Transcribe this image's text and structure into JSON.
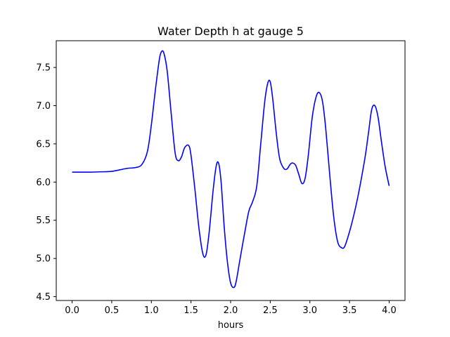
{
  "chart_data": {
    "type": "line",
    "title": "Water Depth h at gauge 5",
    "xlabel": "hours",
    "ylabel": "",
    "xlim": [
      -0.2,
      4.2
    ],
    "ylim": [
      4.45,
      7.85
    ],
    "xticks": [
      0.0,
      0.5,
      1.0,
      1.5,
      2.0,
      2.5,
      3.0,
      3.5,
      4.0
    ],
    "xtick_labels": [
      "0.0",
      "0.5",
      "1.0",
      "1.5",
      "2.0",
      "2.5",
      "3.0",
      "3.5",
      "4.0"
    ],
    "yticks": [
      4.5,
      5.0,
      5.5,
      6.0,
      6.5,
      7.0,
      7.5
    ],
    "ytick_labels": [
      "4.5",
      "5.0",
      "5.5",
      "6.0",
      "6.5",
      "7.0",
      "7.5"
    ],
    "grid": false,
    "series": [
      {
        "color": "#0000ff",
        "x": [
          0.0,
          0.2,
          0.4,
          0.5,
          0.6,
          0.7,
          0.8,
          0.88,
          0.95,
          1.0,
          1.05,
          1.1,
          1.13,
          1.16,
          1.2,
          1.25,
          1.3,
          1.34,
          1.38,
          1.42,
          1.47,
          1.5,
          1.55,
          1.6,
          1.65,
          1.69,
          1.73,
          1.78,
          1.82,
          1.85,
          1.88,
          1.92,
          1.96,
          2.0,
          2.04,
          2.07,
          2.12,
          2.18,
          2.23,
          2.28,
          2.33,
          2.38,
          2.43,
          2.47,
          2.5,
          2.53,
          2.58,
          2.62,
          2.67,
          2.71,
          2.75,
          2.78,
          2.82,
          2.86,
          2.9,
          2.94,
          2.98,
          3.03,
          3.08,
          3.12,
          3.16,
          3.2,
          3.25,
          3.3,
          3.35,
          3.4,
          3.44,
          3.5,
          3.55,
          3.6,
          3.65,
          3.7,
          3.74,
          3.78,
          3.82,
          3.86,
          3.9,
          3.95,
          4.0
        ],
        "y": [
          6.13,
          6.13,
          6.135,
          6.14,
          6.16,
          6.18,
          6.19,
          6.23,
          6.4,
          6.75,
          7.2,
          7.6,
          7.71,
          7.68,
          7.45,
          6.9,
          6.38,
          6.28,
          6.33,
          6.45,
          6.48,
          6.35,
          5.9,
          5.4,
          5.06,
          5.05,
          5.35,
          5.9,
          6.22,
          6.24,
          6.0,
          5.4,
          4.95,
          4.68,
          4.62,
          4.7,
          5.0,
          5.35,
          5.62,
          5.75,
          5.95,
          6.5,
          7.05,
          7.3,
          7.31,
          7.1,
          6.6,
          6.3,
          6.18,
          6.17,
          6.23,
          6.25,
          6.22,
          6.1,
          5.98,
          6.05,
          6.35,
          6.85,
          7.12,
          7.17,
          7.05,
          6.7,
          6.1,
          5.55,
          5.22,
          5.14,
          5.16,
          5.35,
          5.55,
          5.78,
          6.05,
          6.35,
          6.65,
          6.95,
          7.0,
          6.85,
          6.55,
          6.2,
          5.95
        ]
      }
    ]
  }
}
